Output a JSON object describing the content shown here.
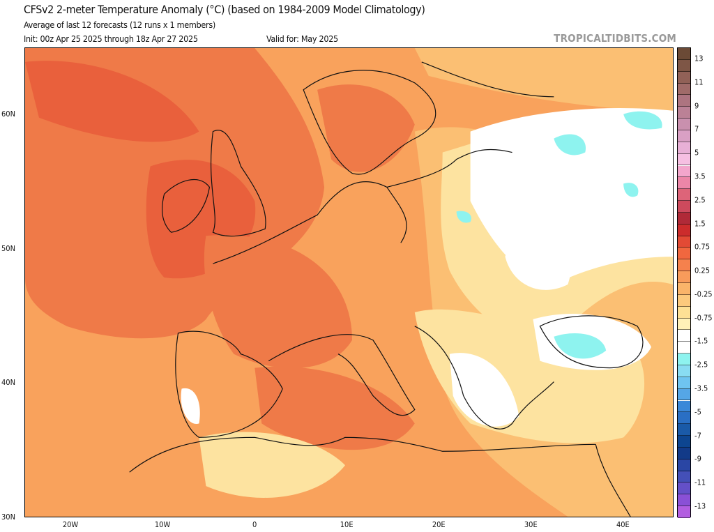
{
  "header": {
    "title": "CFSv2 2-meter Temperature Anomaly (°C) (based on 1984-2009 Model Climatology)",
    "subtitle": "Average of last 12 forecasts (12 runs x 1 members)",
    "init": "Init: 00z Apr 25 2025 through 18z Apr 27 2025",
    "valid": "Valid for: May 2025",
    "logo": "TROPICALTIDBITS.COM"
  },
  "axes": {
    "lat_labels": [
      "60N",
      "50N",
      "40N",
      "30N"
    ],
    "lat_values": [
      60,
      50,
      40,
      30
    ],
    "lon_labels": [
      "20W",
      "10W",
      "0",
      "10E",
      "20E",
      "30E",
      "40E"
    ],
    "lon_values": [
      -20,
      -10,
      0,
      10,
      20,
      30,
      40
    ],
    "lon_range": [
      -25,
      45.5
    ],
    "lat_range": [
      30,
      65
    ]
  },
  "colorbar": {
    "labels": [
      "13",
      "11",
      "9",
      "7",
      "5",
      "3.5",
      "2.5",
      "1.5",
      "0.75",
      "0.25",
      "-0.25",
      "-0.75",
      "-1.5",
      "-2.5",
      "-3.5",
      "-5",
      "-7",
      "-9",
      "-11",
      "-13"
    ],
    "colors": [
      "#6b4a36",
      "#7e5646",
      "#916157",
      "#a06b69",
      "#ad7480",
      "#bb8196",
      "#c990ae",
      "#d9a0c4",
      "#e8b0d6",
      "#f6bfe2",
      "#f3a6cc",
      "#ec86a8",
      "#dd6479",
      "#cd4a5d",
      "#b02a38",
      "#cc2c2c",
      "#e24a35",
      "#f0673f",
      "#f5814d",
      "#f89b5b",
      "#fab46a",
      "#fcc97d",
      "#fde095",
      "#fff1b8",
      "#ffffff",
      "#ffffff",
      "#8ef3ef",
      "#89dcf2",
      "#6fc4f0",
      "#55a6e6",
      "#3b88d8",
      "#2a6fc4",
      "#1a5aa8",
      "#0d4590",
      "#123a88",
      "#2a46a4",
      "#4450b8",
      "#6450c8",
      "#8a50d6",
      "#b25ee0",
      "#d86ee2",
      "#e68edc",
      "#f0a8cc",
      "#f8bab8",
      "#fcc8ae"
    ]
  },
  "map_colors": {
    "ocean_base": "#f9a25c",
    "warm": "#ef7a48",
    "hot": "#e9603c",
    "mild": "#fbbf73",
    "cool": "#fde3a0",
    "neutral": "#ffffff",
    "cold": "#8ef3ef"
  }
}
